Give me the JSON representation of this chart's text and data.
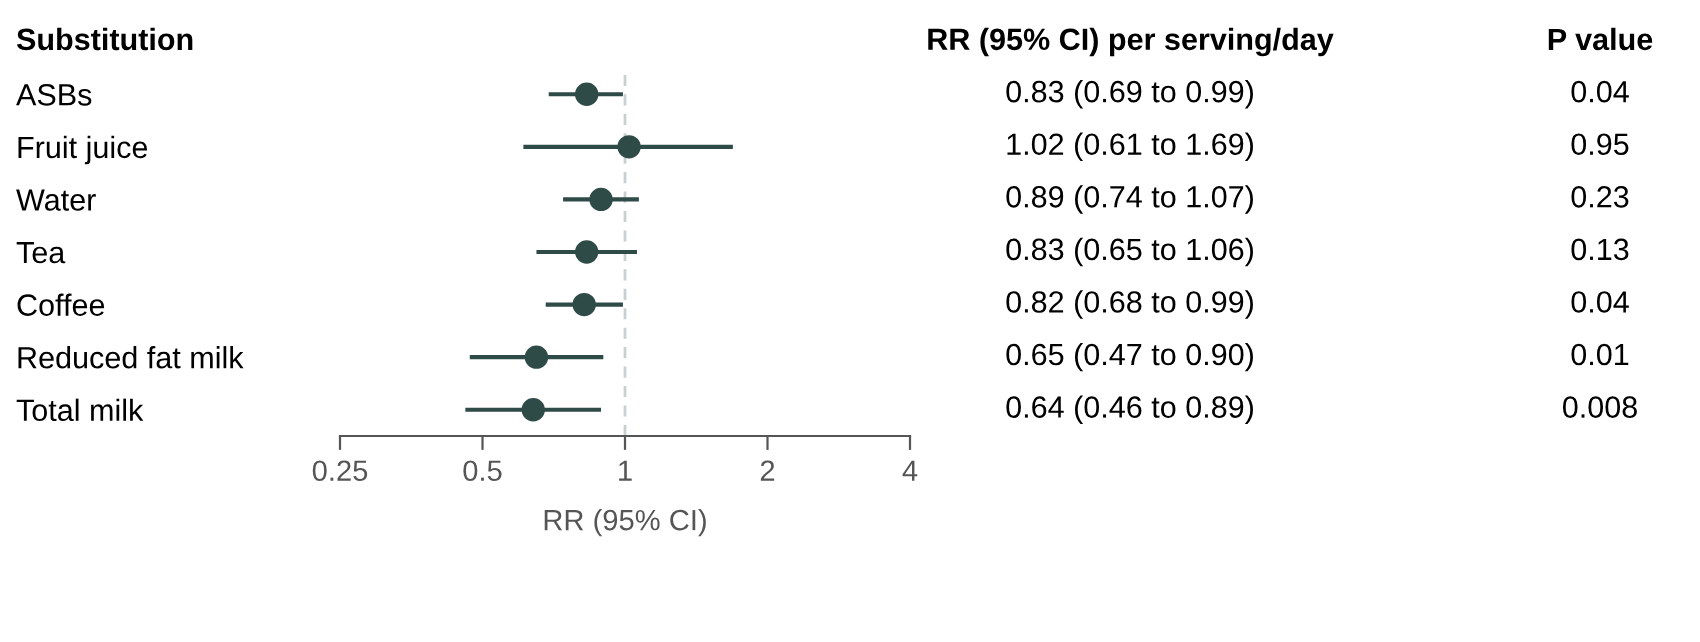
{
  "chart_data": {
    "type": "scatter",
    "orientation": "horizontal",
    "log": "x",
    "ylabel": "Substitution",
    "xlabel": "RR (95% CI)",
    "categories": [
      "ASBs",
      "Fruit juice",
      "Water",
      "Tea",
      "Coffee",
      "Reduced fat milk",
      "Total milk"
    ],
    "series": [
      {
        "color": "#2f4b48",
        "values": [
          0.83,
          1.02,
          0.89,
          0.83,
          0.82,
          0.65,
          0.64
        ],
        "errors": [
          [
            0.69,
            0.99
          ],
          [
            0.61,
            1.69
          ],
          [
            0.74,
            1.07
          ],
          [
            0.65,
            1.06
          ],
          [
            0.68,
            0.99
          ],
          [
            0.47,
            0.9
          ],
          [
            0.46,
            0.89
          ]
        ],
        "value_labels": [
          "0.83 (0.69 to 0.99)",
          "1.02 (0.61 to 1.69)",
          "0.89 (0.74 to 1.07)",
          "0.83 (0.65 to 1.06)",
          "0.82 (0.68 to 0.99)",
          "0.65 (0.47 to 0.90)",
          "0.64 (0.46 to 0.89)"
        ]
      }
    ],
    "marker": "circle",
    "grid": false,
    "legend": false,
    "xlim": [
      0.25,
      4
    ],
    "xticks": [
      0.25,
      0.5,
      1,
      2,
      4
    ],
    "ref_lines": [
      {
        "axis": "x",
        "value": 1,
        "color": "#c8d0d0",
        "line_style": "dashed"
      }
    ],
    "annotations": [
      "RR (95% CI) per serving/day",
      "P value",
      "0.04",
      "0.95",
      "0.23",
      "0.13",
      "0.04",
      "0.01",
      "0.008"
    ]
  }
}
